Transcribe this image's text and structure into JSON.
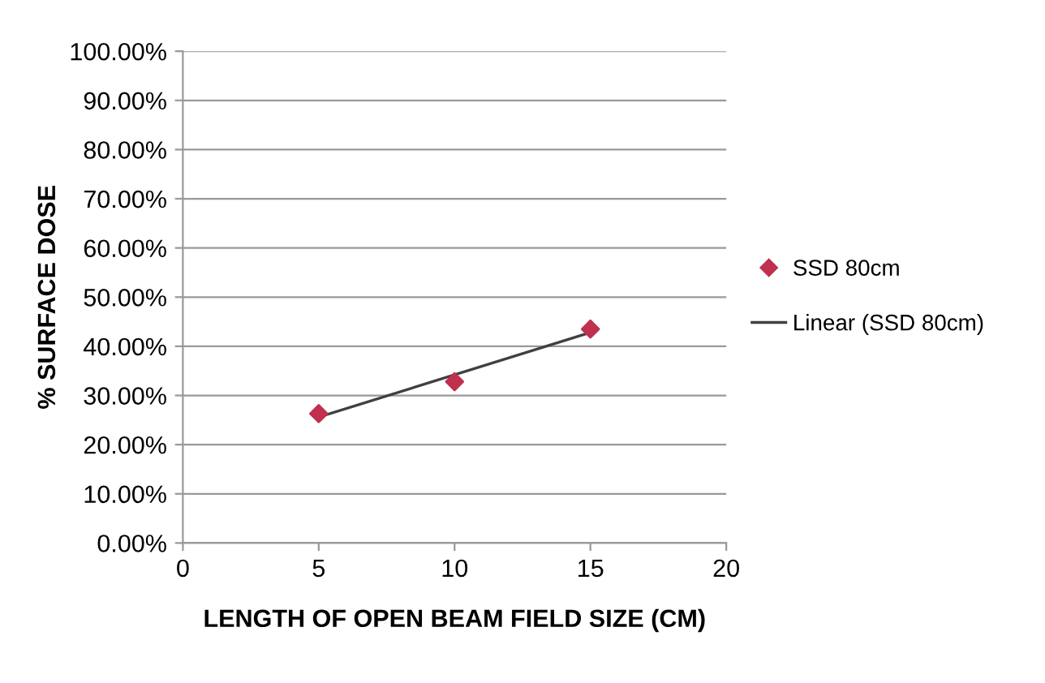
{
  "chart_data": {
    "type": "scatter",
    "xlabel": "LENGTH OF OPEN BEAM FIELD SIZE (CM)",
    "ylabel": "% SURFACE DOSE",
    "series": [
      {
        "name": "SSD 80cm",
        "color": "#c0304f",
        "marker": "diamond",
        "x": [
          5,
          10,
          15
        ],
        "values": [
          26.3,
          32.8,
          43.5
        ]
      },
      {
        "name": "Linear (SSD 80cm)",
        "type": "line",
        "color": "#404040",
        "marker": "none",
        "x": [
          5,
          15
        ],
        "values": [
          25.6,
          42.8
        ]
      }
    ],
    "xlim": [
      0,
      20
    ],
    "xticks": [
      0,
      5,
      10,
      15,
      20
    ],
    "ylim": [
      0,
      100
    ],
    "yticks": [
      {
        "value": 0,
        "label": "0.00%"
      },
      {
        "value": 10,
        "label": "10.00%"
      },
      {
        "value": 20,
        "label": "20.00%"
      },
      {
        "value": 30,
        "label": "30.00%"
      },
      {
        "value": 40,
        "label": "40.00%"
      },
      {
        "value": 50,
        "label": "50.00%"
      },
      {
        "value": 60,
        "label": "60.00%"
      },
      {
        "value": 70,
        "label": "70.00%"
      },
      {
        "value": 80,
        "label": "80.00%"
      },
      {
        "value": 90,
        "label": "90.00%"
      },
      {
        "value": 100,
        "label": "100.00%"
      }
    ],
    "grid": "y",
    "legend": "right"
  }
}
